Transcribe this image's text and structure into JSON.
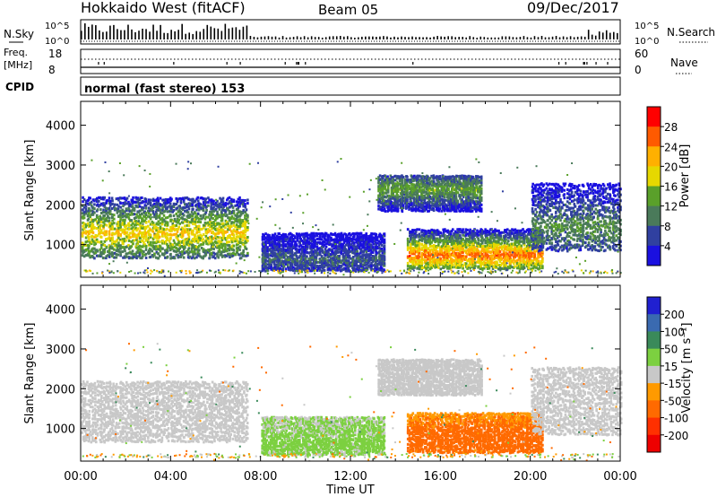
{
  "header": {
    "title": "Hokkaido West (fitACF)",
    "beam": "Beam 05",
    "date": "09/Dec/2017"
  },
  "top_strip": {
    "nsky_label": "N.Sky",
    "nsearch_label": "N.Search",
    "counts_ticks": [
      "10^5",
      "10^0"
    ],
    "freq_label_1": "Freq.",
    "freq_label_2": "[MHz]",
    "freq_ticks": [
      "18",
      "8"
    ],
    "nave_label": "Nave",
    "nave_ticks": [
      "60",
      "0"
    ],
    "cpid_label": "CPID",
    "cpid_text": "normal (fast stereo) 153"
  },
  "chart_data": [
    {
      "type": "heatmap",
      "name": "power",
      "ylabel": "Slant Range [km]",
      "yticks": [
        1000,
        2000,
        3000,
        4000
      ],
      "ylim": [
        180,
        4600
      ],
      "xlim": [
        0,
        24
      ],
      "colorbar_label": "Power [dB]",
      "colorbar_ticks": [
        "28",
        "24",
        "20",
        "16",
        "12",
        "8",
        "4"
      ],
      "colorbar_colors": [
        "#ff0000",
        "#ff5a00",
        "#ffb000",
        "#e6d800",
        "#5aa02a",
        "#4a7a5a",
        "#3040a0",
        "#1a10e0"
      ],
      "scatter_regions": [
        {
          "t0": 0.0,
          "t1": 7.4,
          "r0": 620,
          "r1": 2150,
          "core_r": 1250,
          "strength": 20
        },
        {
          "t0": 8.0,
          "t1": 13.5,
          "r0": 300,
          "r1": 1250,
          "core_r": 600,
          "strength": 8
        },
        {
          "t0": 13.2,
          "t1": 17.8,
          "r0": 1800,
          "r1": 2700,
          "core_r": 2350,
          "strength": 14
        },
        {
          "t0": 14.5,
          "t1": 20.5,
          "r0": 350,
          "r1": 1350,
          "core_r": 700,
          "strength": 26
        },
        {
          "t0": 20.0,
          "t1": 24.0,
          "r0": 800,
          "r1": 2500,
          "core_r": 1400,
          "strength": 12
        }
      ]
    },
    {
      "type": "heatmap",
      "name": "velocity",
      "ylabel": "Slant Range [km]",
      "yticks": [
        1000,
        2000,
        3000,
        4000
      ],
      "ylim": [
        180,
        4600
      ],
      "xlim": [
        0,
        24
      ],
      "xticks": [
        "00:00",
        "04:00",
        "08:00",
        "12:00",
        "16:00",
        "20:00",
        "00:00"
      ],
      "xlabel": "Time UT",
      "colorbar_label": "Velocity [m s⁻¹]",
      "colorbar_ticks": [
        "200",
        "100",
        "50",
        "15",
        "-15",
        "-50",
        "-100",
        "-200"
      ],
      "colorbar_colors": [
        "#2020d0",
        "#3a6ab0",
        "#3a8a5a",
        "#7cd040",
        "#c8c8c8",
        "#ff9a00",
        "#ff6a00",
        "#ff3000",
        "#ee0000"
      ],
      "scatter_regions": [
        {
          "t0": 0.0,
          "t1": 7.4,
          "r0": 620,
          "r1": 2150,
          "core_r": 1250,
          "vel": 0
        },
        {
          "t0": 8.0,
          "t1": 13.5,
          "r0": 300,
          "r1": 1250,
          "core_r": 600,
          "vel": 30
        },
        {
          "t0": 13.2,
          "t1": 17.8,
          "r0": 1800,
          "r1": 2700,
          "core_r": 2350,
          "vel": 0
        },
        {
          "t0": 14.5,
          "t1": 20.5,
          "r0": 350,
          "r1": 1350,
          "core_r": 700,
          "vel": -80
        },
        {
          "t0": 20.0,
          "t1": 24.0,
          "r0": 800,
          "r1": 2500,
          "core_r": 1400,
          "vel": 0
        }
      ]
    }
  ]
}
